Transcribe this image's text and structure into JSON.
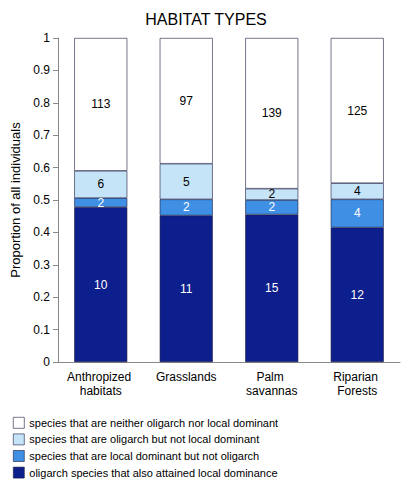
{
  "chart_data": {
    "type": "bar",
    "title": "HABITAT TYPES",
    "y_label": "Proportion of all individuals",
    "categories": [
      "Anthropized habitats",
      "Grasslands",
      "Palm savannas",
      "Riparian Forests"
    ],
    "stacked": true,
    "series": [
      {
        "name": "oligarch species that also attained local dominance",
        "color": "#0c1f8c",
        "values": [
          0.478,
          0.452,
          0.455,
          0.415
        ],
        "species_counts": [
          10,
          11,
          15,
          12
        ]
      },
      {
        "name": "species that are local dominant but not oligarch",
        "color": "#3f8fe4",
        "values": [
          0.028,
          0.05,
          0.045,
          0.087
        ],
        "species_counts": [
          2,
          2,
          2,
          4
        ]
      },
      {
        "name": "species that are oligarch but not local dominant",
        "color": "#c6e4f8",
        "values": [
          0.084,
          0.11,
          0.035,
          0.05
        ],
        "species_counts": [
          6,
          5,
          2,
          4
        ]
      },
      {
        "name": "species that are neither oligarch nor local dominant",
        "color": "#ffffff",
        "values": [
          0.41,
          0.388,
          0.465,
          0.448
        ],
        "species_counts": [
          113,
          97,
          139,
          125
        ]
      }
    ],
    "ylim": [
      0,
      1
    ],
    "yticks": [
      0,
      0.1,
      0.2,
      0.3,
      0.4,
      0.5,
      0.6,
      0.7,
      0.8,
      0.9,
      1
    ],
    "grid": false,
    "legend": "bottom"
  }
}
